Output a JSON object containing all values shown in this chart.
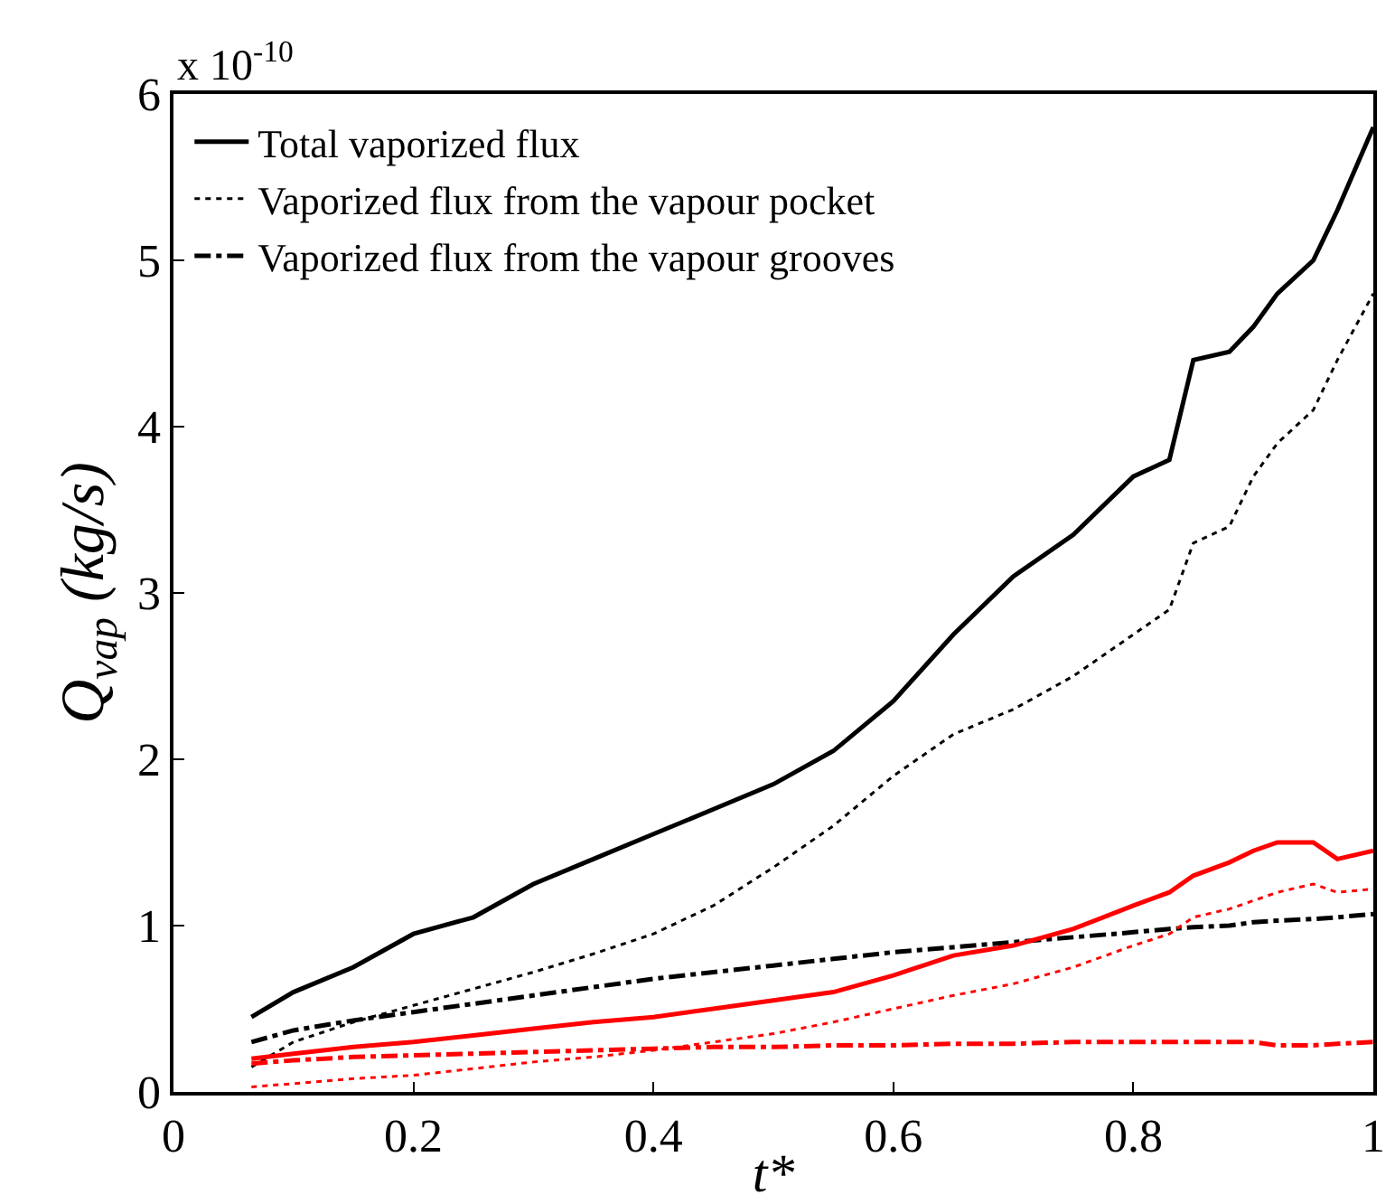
{
  "chart_data": {
    "type": "line",
    "xlabel": "t*",
    "ylabel": "Q$_{vap}$ (kg/s)",
    "annotations": [
      "x 10$^{-10}$"
    ],
    "xlim": [
      0,
      1
    ],
    "xticks": [
      0,
      0.2,
      0.4,
      0.6,
      0.8,
      1
    ],
    "ylim": [
      0,
      6
    ],
    "yticks": [
      0,
      1,
      2,
      3,
      4,
      5,
      6
    ],
    "legend": "top left",
    "x": [
      0.065,
      0.1,
      0.15,
      0.2,
      0.25,
      0.3,
      0.35,
      0.4,
      0.45,
      0.5,
      0.55,
      0.6,
      0.65,
      0.7,
      0.75,
      0.8,
      0.83,
      0.85,
      0.88,
      0.9,
      0.92,
      0.95,
      0.97,
      1.0
    ],
    "series": [
      {
        "name": "Total vaporized flux",
        "color": "#000000",
        "line_style": "solid",
        "values": [
          0.45,
          0.6,
          0.75,
          0.95,
          1.05,
          1.25,
          1.4,
          1.55,
          1.7,
          1.85,
          2.05,
          2.35,
          2.75,
          3.1,
          3.35,
          3.7,
          3.8,
          4.4,
          4.45,
          4.6,
          4.8,
          5.0,
          5.3,
          5.8
        ]
      },
      {
        "name": "Vaporized flux from the vapour pocket",
        "color": "#000000",
        "line_style": "dotted",
        "values": [
          0.15,
          0.3,
          0.42,
          0.52,
          0.62,
          0.72,
          0.83,
          0.95,
          1.12,
          1.35,
          1.6,
          1.9,
          2.15,
          2.3,
          2.5,
          2.75,
          2.9,
          3.3,
          3.4,
          3.7,
          3.9,
          4.1,
          4.4,
          4.8
        ]
      },
      {
        "name": "Vaporized flux from the vapour grooves",
        "color": "#000000",
        "line_style": "dashdot",
        "values": [
          0.3,
          0.37,
          0.43,
          0.48,
          0.53,
          0.58,
          0.63,
          0.68,
          0.72,
          0.76,
          0.8,
          0.84,
          0.87,
          0.9,
          0.93,
          0.96,
          0.98,
          0.99,
          1.0,
          1.02,
          1.03,
          1.04,
          1.05,
          1.07
        ]
      },
      {
        "color": "#ff0000",
        "line_style": "solid",
        "values": [
          0.2,
          0.23,
          0.27,
          0.3,
          0.34,
          0.38,
          0.42,
          0.45,
          0.5,
          0.55,
          0.6,
          0.7,
          0.82,
          0.88,
          0.98,
          1.12,
          1.2,
          1.3,
          1.38,
          1.45,
          1.5,
          1.5,
          1.4,
          1.45
        ]
      },
      {
        "color": "#ff0000",
        "line_style": "dotted",
        "values": [
          0.03,
          0.05,
          0.08,
          0.1,
          0.14,
          0.18,
          0.21,
          0.25,
          0.3,
          0.35,
          0.42,
          0.5,
          0.58,
          0.65,
          0.75,
          0.88,
          0.95,
          1.05,
          1.1,
          1.15,
          1.2,
          1.25,
          1.2,
          1.22
        ]
      },
      {
        "color": "#ff0000",
        "line_style": "dashdot",
        "values": [
          0.17,
          0.19,
          0.21,
          0.22,
          0.23,
          0.24,
          0.25,
          0.26,
          0.27,
          0.27,
          0.28,
          0.28,
          0.29,
          0.29,
          0.3,
          0.3,
          0.3,
          0.3,
          0.3,
          0.3,
          0.28,
          0.28,
          0.29,
          0.3
        ]
      }
    ]
  }
}
